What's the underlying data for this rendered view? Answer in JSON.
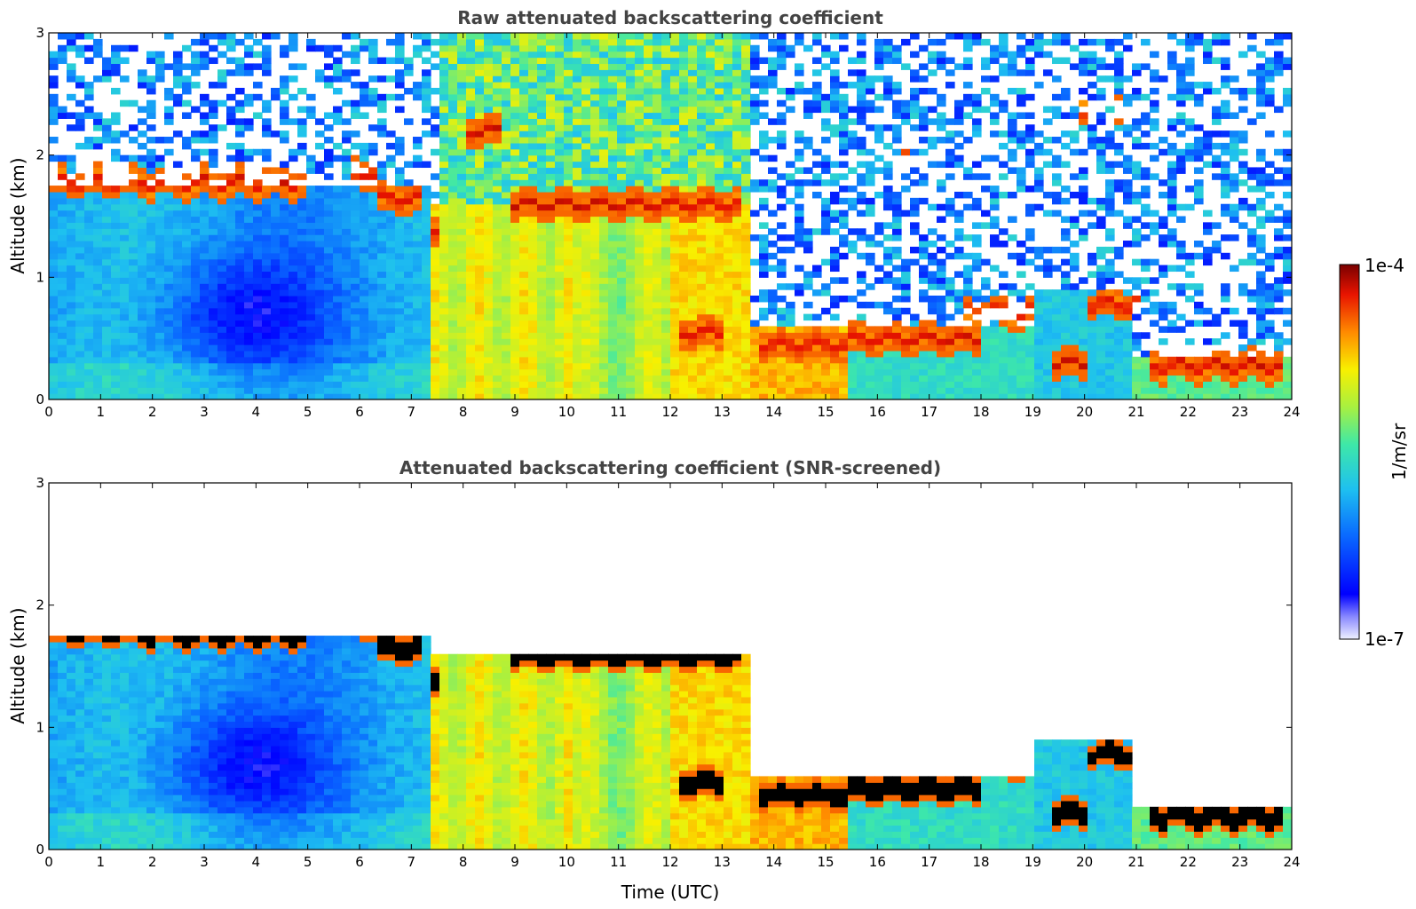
{
  "chart_data": [
    {
      "type": "heatmap",
      "title": "Raw attenuated backscattering coefficient",
      "xlabel": "",
      "ylabel": "Altitude (km)",
      "xlim": [
        0,
        24
      ],
      "ylim": [
        0,
        3
      ],
      "xticks": [
        "0",
        "1",
        "2",
        "3",
        "4",
        "5",
        "6",
        "7",
        "8",
        "9",
        "10",
        "11",
        "12",
        "13",
        "14",
        "15",
        "16",
        "17",
        "18",
        "19",
        "20",
        "21",
        "22",
        "23",
        "24"
      ],
      "yticks": [
        "0",
        "1",
        "2",
        "3"
      ],
      "colorscale": "jet",
      "color_range": [
        "1e-7",
        "1e-4"
      ],
      "color_unit": "1/m/sr",
      "cloud_layers": [
        {
          "t_start": 0,
          "t_end": 5.0,
          "altitude_km": 1.78
        },
        {
          "t_start": 5.8,
          "t_end": 6.3,
          "altitude_km": 1.85
        },
        {
          "t_start": 6.4,
          "t_end": 7.2,
          "altitude_km": 1.65
        },
        {
          "t_start": 7.3,
          "t_end": 7.5,
          "altitude_km": 1.4
        },
        {
          "t_start": 8.0,
          "t_end": 8.7,
          "altitude_km": 2.2
        },
        {
          "t_start": 9.0,
          "t_end": 12.0,
          "altitude_km": 1.6
        },
        {
          "t_start": 12.0,
          "t_end": 13.3,
          "altitude_km": 1.6
        },
        {
          "t_start": 12.2,
          "t_end": 13.0,
          "altitude_km": 0.55
        },
        {
          "t_start": 13.7,
          "t_end": 15.4,
          "altitude_km": 0.45
        },
        {
          "t_start": 15.5,
          "t_end": 18.0,
          "altitude_km": 0.5
        },
        {
          "t_start": 17.7,
          "t_end": 19.0,
          "altitude_km": 0.72
        },
        {
          "t_start": 19.4,
          "t_end": 20.0,
          "altitude_km": 0.3
        },
        {
          "t_start": 20.0,
          "t_end": 21.0,
          "altitude_km": 0.78
        },
        {
          "t_start": 21.2,
          "t_end": 23.9,
          "altitude_km": 0.28
        },
        {
          "t_start": 19.8,
          "t_end": 20.1,
          "altitude_km": 2.38
        },
        {
          "t_start": 20.6,
          "t_end": 20.8,
          "altitude_km": 2.38
        },
        {
          "t_start": 16.5,
          "t_end": 16.65,
          "altitude_km": 2.1
        }
      ]
    },
    {
      "type": "heatmap",
      "title": "Attenuated backscattering coefficient (SNR-screened)",
      "xlabel": "Time (UTC)",
      "ylabel": "Altitude (km)",
      "xlim": [
        0,
        24
      ],
      "ylim": [
        0,
        3
      ],
      "xticks": [
        "0",
        "1",
        "2",
        "3",
        "4",
        "5",
        "6",
        "7",
        "8",
        "9",
        "10",
        "11",
        "12",
        "13",
        "14",
        "15",
        "16",
        "17",
        "18",
        "19",
        "20",
        "21",
        "22",
        "23",
        "24"
      ],
      "yticks": [
        "0",
        "1",
        "2",
        "3"
      ],
      "colorscale": "jet",
      "color_range": [
        "1e-7",
        "1e-4"
      ],
      "color_unit": "1/m/sr"
    }
  ],
  "colorbar": {
    "max_label": "1e-4",
    "min_label": "1e-7",
    "unit_label": "1/m/sr"
  }
}
